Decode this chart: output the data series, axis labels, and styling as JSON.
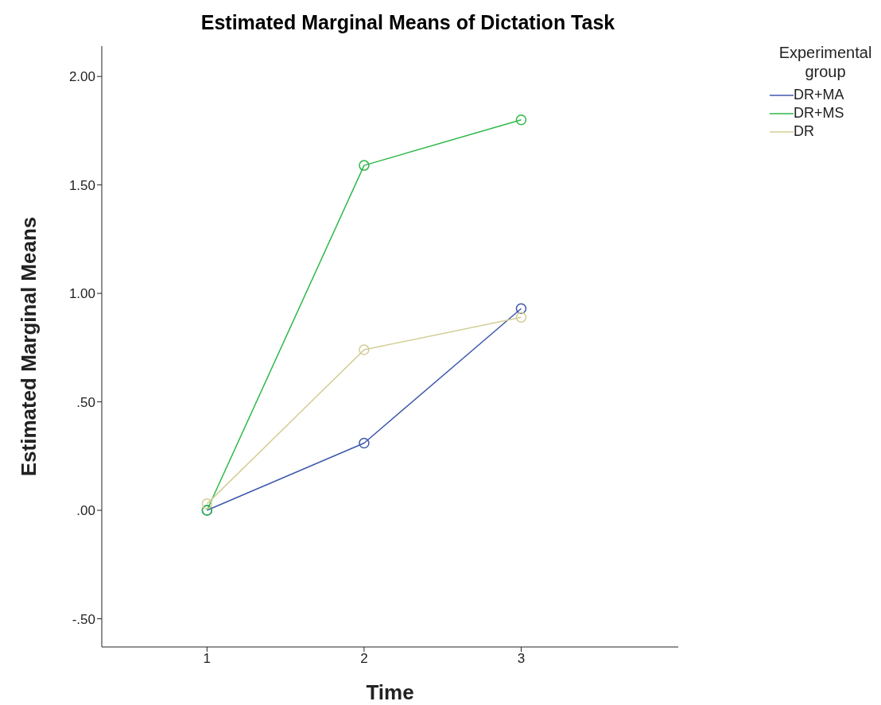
{
  "chart_data": {
    "type": "line",
    "title": "Estimated Marginal Means of Dictation Task",
    "xlabel": "Time",
    "ylabel": "Estimated Marginal Means",
    "legend_title": "Experimental group",
    "x": [
      1,
      2,
      3
    ],
    "series": [
      {
        "name": "DR+MA",
        "color": "#3e58ac",
        "values": [
          0.0,
          0.31,
          0.93
        ]
      },
      {
        "name": "DR+MS",
        "color": "#2eb848",
        "values": [
          0.0,
          1.59,
          1.8
        ]
      },
      {
        "name": "DR",
        "color": "#d3ce97",
        "values": [
          0.03,
          0.74,
          0.89
        ]
      }
    ],
    "xlim": [
      0.33,
      4.0
    ],
    "xticks": [
      1,
      2,
      3
    ],
    "ylim": [
      -0.63,
      2.14
    ],
    "yticks": [
      {
        "value": -0.5,
        "label": "-.50"
      },
      {
        "value": 0,
        "label": ".00"
      },
      {
        "value": 0.5,
        "label": ".50"
      },
      {
        "value": 1,
        "label": "1.00"
      },
      {
        "value": 1.5,
        "label": "1.50"
      },
      {
        "value": 2,
        "label": "2.00"
      }
    ],
    "grid": false,
    "legend": "top right",
    "marker": "circle",
    "line_style": "solid"
  }
}
